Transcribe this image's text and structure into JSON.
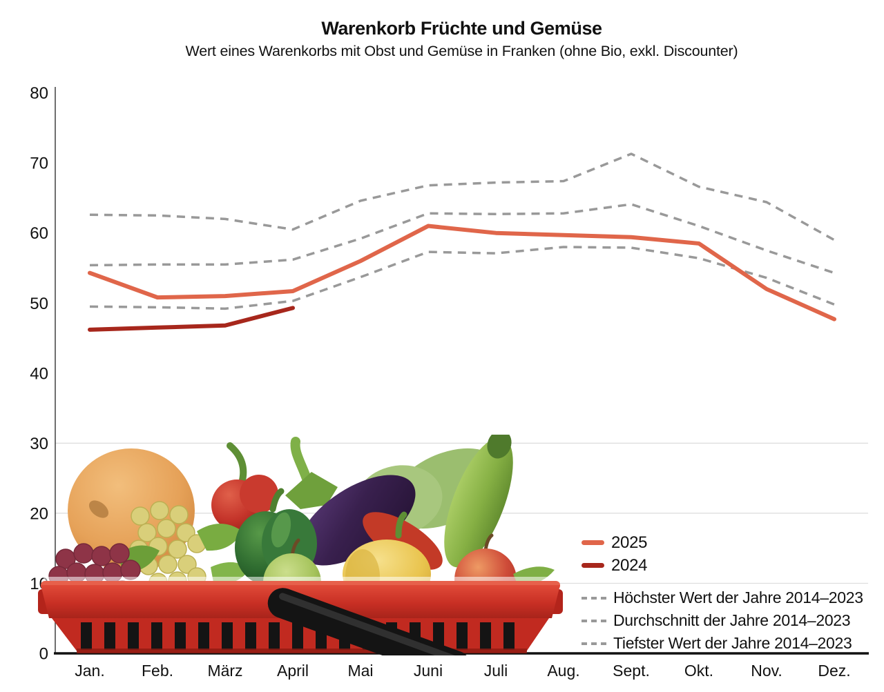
{
  "chart": {
    "title": "Warenkorb Früchte und Gemüse",
    "subtitle": "Wert eines Warenkorbs mit Obst und Gemüse in Franken (ohne Bio, exkl. Discounter)"
  },
  "chart_data": {
    "type": "line",
    "title": "Warenkorb Früchte und Gemüse",
    "subtitle": "Wert eines Warenkorbs mit Obst und Gemüse in Franken (ohne Bio, exkl. Discounter)",
    "unit": "Franken",
    "categories": [
      "Jan.",
      "Feb.",
      "März",
      "April",
      "Mai",
      "Juni",
      "Juli",
      "Aug.",
      "Sept.",
      "Okt.",
      "Nov.",
      "Dez."
    ],
    "y_ticks": [
      0,
      10,
      20,
      30,
      40,
      50,
      60,
      70,
      80
    ],
    "ylim": [
      0,
      80
    ],
    "gridlines_at": [
      10,
      20,
      30
    ],
    "grid": "partial-horizontal",
    "legend_position": "bottom-right",
    "series": [
      {
        "name": "2025",
        "style": "solid",
        "color": "#E0664A",
        "width": 6,
        "values": [
          54.3,
          50.8,
          51.0,
          51.7,
          56.0,
          61.0,
          60.0,
          59.7,
          59.4,
          58.5,
          52.0,
          47.7
        ]
      },
      {
        "name": "2024",
        "style": "solid",
        "color": "#A7271C",
        "width": 6,
        "values": [
          46.2,
          46.5,
          46.8,
          49.3,
          null,
          null,
          null,
          null,
          null,
          null,
          null,
          null
        ]
      },
      {
        "name": "Höchster Wert der Jahre 2014–2023",
        "style": "dashed",
        "color": "#999999",
        "width": 3.5,
        "values": [
          62.6,
          62.5,
          62.0,
          60.5,
          64.6,
          66.8,
          67.2,
          67.4,
          71.3,
          66.6,
          64.4,
          59.0
        ]
      },
      {
        "name": "Durchschnitt der Jahre 2014–2023",
        "style": "dashed",
        "color": "#999999",
        "width": 3.5,
        "values": [
          55.4,
          55.5,
          55.5,
          56.2,
          59.2,
          62.8,
          62.7,
          62.8,
          64.1,
          61.0,
          57.5,
          54.3
        ]
      },
      {
        "name": "Tiefster Wert der Jahre 2014–2023",
        "style": "dashed",
        "color": "#999999",
        "width": 3.5,
        "values": [
          49.5,
          49.4,
          49.2,
          50.3,
          53.7,
          57.3,
          57.1,
          58.0,
          57.9,
          56.4,
          53.6,
          49.8
        ]
      }
    ]
  },
  "icons": {
    "basket_illustration": "shopping-basket-with-fruits-and-vegetables"
  }
}
